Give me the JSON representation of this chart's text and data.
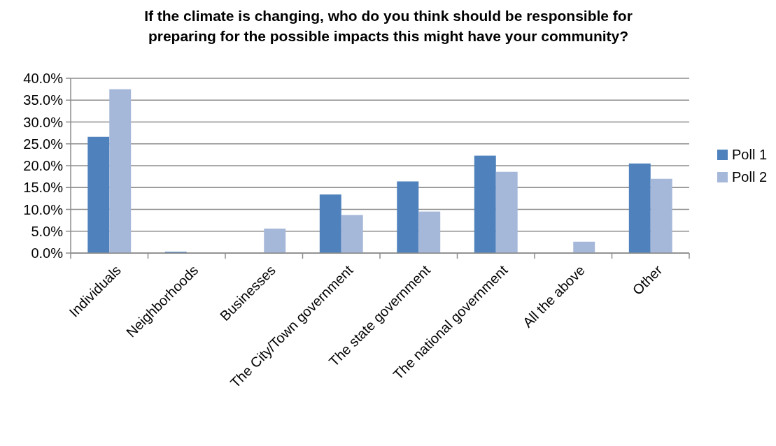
{
  "chart_data": {
    "type": "bar",
    "title": "If the climate is changing, who do you think should be responsible for preparing for the possible impacts this might have your community?",
    "categories": [
      "Individuals",
      "Neighborhoods",
      "Businesses",
      "The City/Town government",
      "The state government",
      "The national government",
      "All the above",
      "Other"
    ],
    "series": [
      {
        "name": "Poll 1",
        "color": "#4f81bd",
        "values": [
          26.6,
          0.3,
          0,
          13.4,
          16.4,
          22.3,
          0,
          20.5
        ]
      },
      {
        "name": "Poll 2",
        "color": "#a5b8d9",
        "values": [
          37.5,
          0,
          5.6,
          8.7,
          9.5,
          18.6,
          2.6,
          17.0
        ]
      }
    ],
    "ylim": [
      0,
      40
    ],
    "yticks": [
      {
        "value": 0,
        "label": "0.0%"
      },
      {
        "value": 5,
        "label": "5.0%"
      },
      {
        "value": 10,
        "label": "10.0%"
      },
      {
        "value": 15,
        "label": "15.0%"
      },
      {
        "value": 20,
        "label": "20.0%"
      },
      {
        "value": 25,
        "label": "25.0%"
      },
      {
        "value": 30,
        "label": "30.0%"
      },
      {
        "value": 35,
        "label": "35.0%"
      },
      {
        "value": 40,
        "label": "40.0%"
      }
    ],
    "grid": "y",
    "legend": "right"
  }
}
